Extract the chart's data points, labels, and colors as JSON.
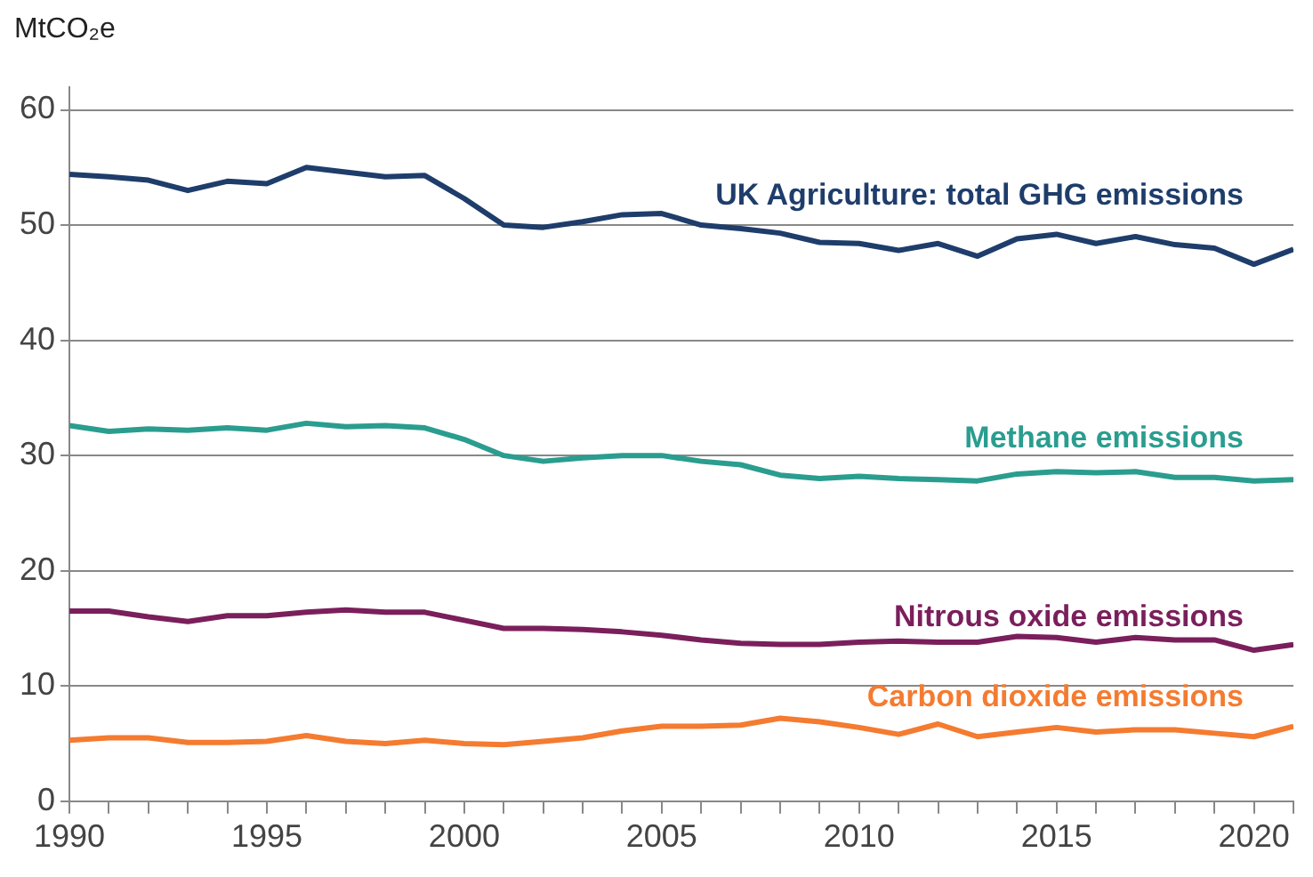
{
  "chart_data": {
    "type": "line",
    "ylabel": "MtCO₂e",
    "x": [
      1990,
      1991,
      1992,
      1993,
      1994,
      1995,
      1996,
      1997,
      1998,
      1999,
      2000,
      2001,
      2002,
      2003,
      2004,
      2005,
      2006,
      2007,
      2008,
      2009,
      2010,
      2011,
      2012,
      2013,
      2014,
      2015,
      2016,
      2017,
      2018,
      2019,
      2020,
      2021
    ],
    "series": [
      {
        "name": "UK Agriculture: total GHG emissions",
        "color": "#1e3d6b",
        "values": [
          54.4,
          54.2,
          53.9,
          53.0,
          53.8,
          53.6,
          55.0,
          54.6,
          54.2,
          54.3,
          52.3,
          50.0,
          49.8,
          50.3,
          50.9,
          51.0,
          50.0,
          49.7,
          49.3,
          48.5,
          48.4,
          47.8,
          48.4,
          47.3,
          48.8,
          49.2,
          48.4,
          49.0,
          48.3,
          48.0,
          46.6,
          47.9
        ]
      },
      {
        "name": "Methane emissions",
        "color": "#2a9d8f",
        "values": [
          32.6,
          32.1,
          32.3,
          32.2,
          32.4,
          32.2,
          32.8,
          32.5,
          32.6,
          32.4,
          31.4,
          30.0,
          29.5,
          29.8,
          30.0,
          30.0,
          29.5,
          29.2,
          28.3,
          28.0,
          28.2,
          28.0,
          27.9,
          27.8,
          28.4,
          28.6,
          28.5,
          28.6,
          28.1,
          28.1,
          27.8,
          27.9
        ]
      },
      {
        "name": "Nitrous oxide emissions",
        "color": "#7a1f5c",
        "values": [
          16.5,
          16.5,
          16.0,
          15.6,
          16.1,
          16.1,
          16.4,
          16.6,
          16.4,
          16.4,
          15.7,
          15.0,
          15.0,
          14.9,
          14.7,
          14.4,
          14.0,
          13.7,
          13.6,
          13.6,
          13.8,
          13.9,
          13.8,
          13.8,
          14.3,
          14.2,
          13.8,
          14.2,
          14.0,
          14.0,
          13.1,
          13.6
        ]
      },
      {
        "name": "Carbon dioxide emissions",
        "color": "#f47b30",
        "values": [
          5.3,
          5.5,
          5.5,
          5.1,
          5.1,
          5.2,
          5.7,
          5.2,
          5.0,
          5.3,
          5.0,
          4.9,
          5.2,
          5.5,
          6.1,
          6.5,
          6.5,
          6.6,
          7.2,
          6.9,
          6.4,
          5.8,
          6.7,
          5.6,
          6.0,
          6.4,
          6.0,
          6.2,
          6.2,
          5.9,
          5.6,
          6.5
        ]
      }
    ],
    "xlim": [
      1990,
      2021
    ],
    "xticks": [
      1990,
      {
        "value": 1991,
        "label": null
      },
      {
        "value": 1992,
        "label": null
      },
      {
        "value": 1993,
        "label": null
      },
      {
        "value": 1994,
        "label": null
      },
      1995,
      {
        "value": 1996,
        "label": null
      },
      {
        "value": 1997,
        "label": null
      },
      {
        "value": 1998,
        "label": null
      },
      {
        "value": 1999,
        "label": null
      },
      2000,
      {
        "value": 2001,
        "label": null
      },
      {
        "value": 2002,
        "label": null
      },
      {
        "value": 2003,
        "label": null
      },
      {
        "value": 2004,
        "label": null
      },
      2005,
      {
        "value": 2006,
        "label": null
      },
      {
        "value": 2007,
        "label": null
      },
      {
        "value": 2008,
        "label": null
      },
      {
        "value": 2009,
        "label": null
      },
      2010,
      {
        "value": 2011,
        "label": null
      },
      {
        "value": 2012,
        "label": null
      },
      {
        "value": 2013,
        "label": null
      },
      {
        "value": 2014,
        "label": null
      },
      2015,
      {
        "value": 2016,
        "label": null
      },
      {
        "value": 2017,
        "label": null
      },
      {
        "value": 2018,
        "label": null
      },
      {
        "value": 2019,
        "label": null
      },
      2020,
      {
        "value": 2021,
        "label": null
      }
    ],
    "ylim": [
      0,
      62
    ],
    "yticks": [
      0,
      10,
      20,
      30,
      40,
      50,
      60
    ],
    "grid": "y",
    "legend": false,
    "marker": "none",
    "line_style": "solid"
  }
}
